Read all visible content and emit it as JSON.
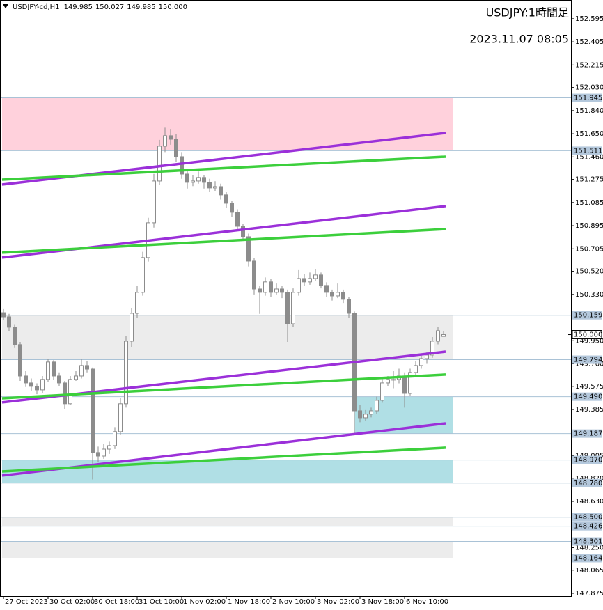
{
  "chart_data": {
    "type": "candlestick",
    "symbol": "USDJPY-cd,H1",
    "header_values": [
      "149.985",
      "150.027",
      "149.985",
      "150.000"
    ],
    "title": "USDJPY:1時間足",
    "subtitle": "2023.11.07 08:05",
    "up_color": "#ffffff",
    "down_color": "#8c8c8c",
    "wick_color": "#8c8c8c",
    "xlim": [
      -0.625,
      101.875
    ],
    "ylim": [
      147.852,
      152.749
    ],
    "xticks": [
      {
        "value": 0,
        "label": "27 Oct 2023"
      },
      {
        "value": 8,
        "label": "30 Oct 02:00"
      },
      {
        "value": 16,
        "label": "30 Oct 18:00"
      },
      {
        "value": 24,
        "label": "31 Oct 10:00"
      },
      {
        "value": 32,
        "label": "1 Nov 02:00"
      },
      {
        "value": 40,
        "label": "1 Nov 18:00"
      },
      {
        "value": 48,
        "label": "2 Nov 10:00"
      },
      {
        "value": 56,
        "label": "3 Nov 02:00"
      },
      {
        "value": 64,
        "label": "3 Nov 18:00"
      },
      {
        "value": 72,
        "label": "6 Nov 10:00"
      }
    ],
    "yticks": [
      152.595,
      152.405,
      152.215,
      {
        "value": 152.03,
        "label": "152.030"
      },
      {
        "value": 151.84,
        "label": "151.840"
      },
      {
        "value": 151.65,
        "label": "151.650"
      },
      {
        "value": 151.46,
        "label": "151.460"
      },
      151.275,
      151.085,
      150.895,
      150.705,
      {
        "value": 150.52,
        "label": "150.520"
      },
      {
        "value": 150.33,
        "label": "150.330"
      },
      {
        "value": 149.95,
        "label": "149.950"
      },
      {
        "value": 149.76,
        "label": "149.760"
      },
      149.575,
      149.385,
      149.005,
      {
        "value": 148.82,
        "label": "148.820"
      },
      {
        "value": 148.63,
        "label": "148.630"
      },
      {
        "value": 148.25,
        "label": "148.250"
      },
      148.065,
      147.875
    ],
    "price": {
      "value": 150,
      "label": "150.000"
    },
    "zones": [
      {
        "top": 151.945,
        "bottom": 151.511,
        "x": [
          -0.25,
          80.75
        ],
        "color": "#ffd1dc"
      },
      {
        "top": 150.159,
        "bottom": {
          "value": 149.794,
          "label": "149.794"
        },
        "x": [
          -0.25,
          80.75
        ],
        "color": "#ececec"
      },
      {
        "top": {
          "value": 149.49,
          "label": "149.490"
        },
        "bottom": 149.187,
        "x": [
          63.1,
          80.75
        ],
        "color": "#b0dfe5"
      },
      {
        "top": {
          "value": 148.97,
          "label": "148.970"
        },
        "bottom": {
          "value": 148.78,
          "label": "148.780"
        },
        "x": [
          -0.25,
          80.75
        ],
        "color": "#b0dfe5"
      },
      {
        "top": {
          "value": 148.5,
          "label": "148.500"
        },
        "bottom": 148.426,
        "x": [
          -0.25,
          80.75
        ],
        "color": "#ececec"
      },
      {
        "top": 148.301,
        "bottom": 148.164,
        "x": [
          -0.25,
          80.75
        ],
        "color": "#ececec"
      }
    ],
    "lines": [
      {
        "color": "#9b30d9",
        "x": [
          -0.25,
          79.375
        ],
        "y": [
          151.233,
          151.657
        ]
      },
      {
        "color": "#9b30d9",
        "x": [
          -0.25,
          79.375
        ],
        "y": [
          150.633,
          151.056
        ]
      },
      {
        "color": "#9b30d9",
        "x": [
          -0.25,
          79.375
        ],
        "y": [
          149.443,
          149.86
        ]
      },
      {
        "color": "#9b30d9",
        "x": [
          -0.25,
          79.375
        ],
        "y": [
          148.842,
          149.271
        ]
      },
      {
        "color": "#3ccf3c",
        "x": [
          -0.25,
          79.375
        ],
        "y": [
          151.273,
          151.462
        ]
      },
      {
        "color": "#3ccf3c",
        "x": [
          -0.25,
          79.375
        ],
        "y": [
          150.673,
          150.867
        ]
      },
      {
        "color": "#3ccf3c",
        "x": [
          -0.25,
          79.375
        ],
        "y": [
          149.477,
          149.672
        ]
      },
      {
        "color": "#3ccf3c",
        "x": [
          -0.25,
          79.375
        ],
        "y": [
          148.876,
          149.071
        ]
      }
    ],
    "candles": [
      [
        150.18,
        150.21,
        150.12,
        150.146
      ],
      [
        150.146,
        150.17,
        150.03,
        150.061
      ],
      [
        150.061,
        150.08,
        149.89,
        149.918
      ],
      [
        149.918,
        149.94,
        149.62,
        149.66
      ],
      [
        149.66,
        149.7,
        149.57,
        149.603
      ],
      [
        149.603,
        149.64,
        149.54,
        149.575
      ],
      [
        149.575,
        149.6,
        149.51,
        149.546
      ],
      [
        149.546,
        149.66,
        149.52,
        149.632
      ],
      [
        149.632,
        149.8,
        149.61,
        149.775
      ],
      [
        149.775,
        149.79,
        149.63,
        149.66
      ],
      [
        149.66,
        149.69,
        149.58,
        149.603
      ],
      [
        149.603,
        149.62,
        149.39,
        149.432
      ],
      [
        149.432,
        149.66,
        149.42,
        149.632
      ],
      [
        149.632,
        149.7,
        149.62,
        149.66
      ],
      [
        149.66,
        149.8,
        149.64,
        149.746
      ],
      [
        149.746,
        149.78,
        149.69,
        149.717
      ],
      [
        149.717,
        149.73,
        148.81,
        149.031
      ],
      [
        149.031,
        149.08,
        148.95,
        149.002
      ],
      [
        149.002,
        149.1,
        148.98,
        149.059
      ],
      [
        149.059,
        149.12,
        149.02,
        149.088
      ],
      [
        149.088,
        149.24,
        149.06,
        149.203
      ],
      [
        149.203,
        149.48,
        149.18,
        149.432
      ],
      [
        149.432,
        149.99,
        149.4,
        149.946
      ],
      [
        149.946,
        150.22,
        149.9,
        150.175
      ],
      [
        150.175,
        150.4,
        150.14,
        150.347
      ],
      [
        150.347,
        150.68,
        150.32,
        150.633
      ],
      [
        150.633,
        150.96,
        150.6,
        150.919
      ],
      [
        150.919,
        151.32,
        150.88,
        151.262
      ],
      [
        151.262,
        151.6,
        151.23,
        151.548
      ],
      [
        151.548,
        151.7,
        151.5,
        151.634
      ],
      [
        151.634,
        151.69,
        151.56,
        151.605
      ],
      [
        151.605,
        151.65,
        151.42,
        151.462
      ],
      [
        151.462,
        151.5,
        151.28,
        151.319
      ],
      [
        151.319,
        151.36,
        151.2,
        151.251
      ],
      [
        151.251,
        151.31,
        151.22,
        151.262
      ],
      [
        151.262,
        151.34,
        151.24,
        151.291
      ],
      [
        151.291,
        151.31,
        151.2,
        151.251
      ],
      [
        151.251,
        151.28,
        151.17,
        151.205
      ],
      [
        151.205,
        151.26,
        151.18,
        151.216
      ],
      [
        151.216,
        151.24,
        151.11,
        151.148
      ],
      [
        151.148,
        151.17,
        151.04,
        151.079
      ],
      [
        151.079,
        151.1,
        150.97,
        151.005
      ],
      [
        151.005,
        151.03,
        150.85,
        150.89
      ],
      [
        150.89,
        150.91,
        150.77,
        150.804
      ],
      [
        150.804,
        150.83,
        150.56,
        150.604
      ],
      [
        150.604,
        150.63,
        150.33,
        150.375
      ],
      [
        150.375,
        150.4,
        150.17,
        150.347
      ],
      [
        150.347,
        150.47,
        150.32,
        150.433
      ],
      [
        150.433,
        150.46,
        150.31,
        150.347
      ],
      [
        150.347,
        150.42,
        150.33,
        150.375
      ],
      [
        150.375,
        150.4,
        150.3,
        150.347
      ],
      [
        150.347,
        150.37,
        149.94,
        150.089
      ],
      [
        150.089,
        150.38,
        150.06,
        150.347
      ],
      [
        150.347,
        150.53,
        150.32,
        150.461
      ],
      [
        150.461,
        150.5,
        150.4,
        150.433
      ],
      [
        150.433,
        150.51,
        150.41,
        150.461
      ],
      [
        150.461,
        150.54,
        150.44,
        150.49
      ],
      [
        150.49,
        150.51,
        150.38,
        150.404
      ],
      [
        150.404,
        150.43,
        150.31,
        150.347
      ],
      [
        150.347,
        150.37,
        150.28,
        150.318
      ],
      [
        150.318,
        150.42,
        150.3,
        150.347
      ],
      [
        150.347,
        150.37,
        150.26,
        150.29
      ],
      [
        150.29,
        150.31,
        150.14,
        150.175
      ],
      [
        150.175,
        150.19,
        149.19,
        149.374
      ],
      [
        149.374,
        149.42,
        149.28,
        149.317
      ],
      [
        149.317,
        149.38,
        149.29,
        149.346
      ],
      [
        149.346,
        149.4,
        149.32,
        149.374
      ],
      [
        149.374,
        149.49,
        149.35,
        149.46
      ],
      [
        149.46,
        149.64,
        149.44,
        149.603
      ],
      [
        149.603,
        149.66,
        149.58,
        149.632
      ],
      [
        149.632,
        149.7,
        149.56,
        149.632
      ],
      [
        149.632,
        149.72,
        149.6,
        149.66
      ],
      [
        149.66,
        149.69,
        149.4,
        149.517
      ],
      [
        149.517,
        149.72,
        149.5,
        149.689
      ],
      [
        149.689,
        149.78,
        149.66,
        149.746
      ],
      [
        149.746,
        149.84,
        149.72,
        149.803
      ],
      [
        149.803,
        149.86,
        149.76,
        149.832
      ],
      [
        149.832,
        149.98,
        149.81,
        149.946
      ],
      [
        149.946,
        150.06,
        149.92,
        150.032
      ],
      [
        149.985,
        150.027,
        149.985,
        150
      ]
    ]
  }
}
